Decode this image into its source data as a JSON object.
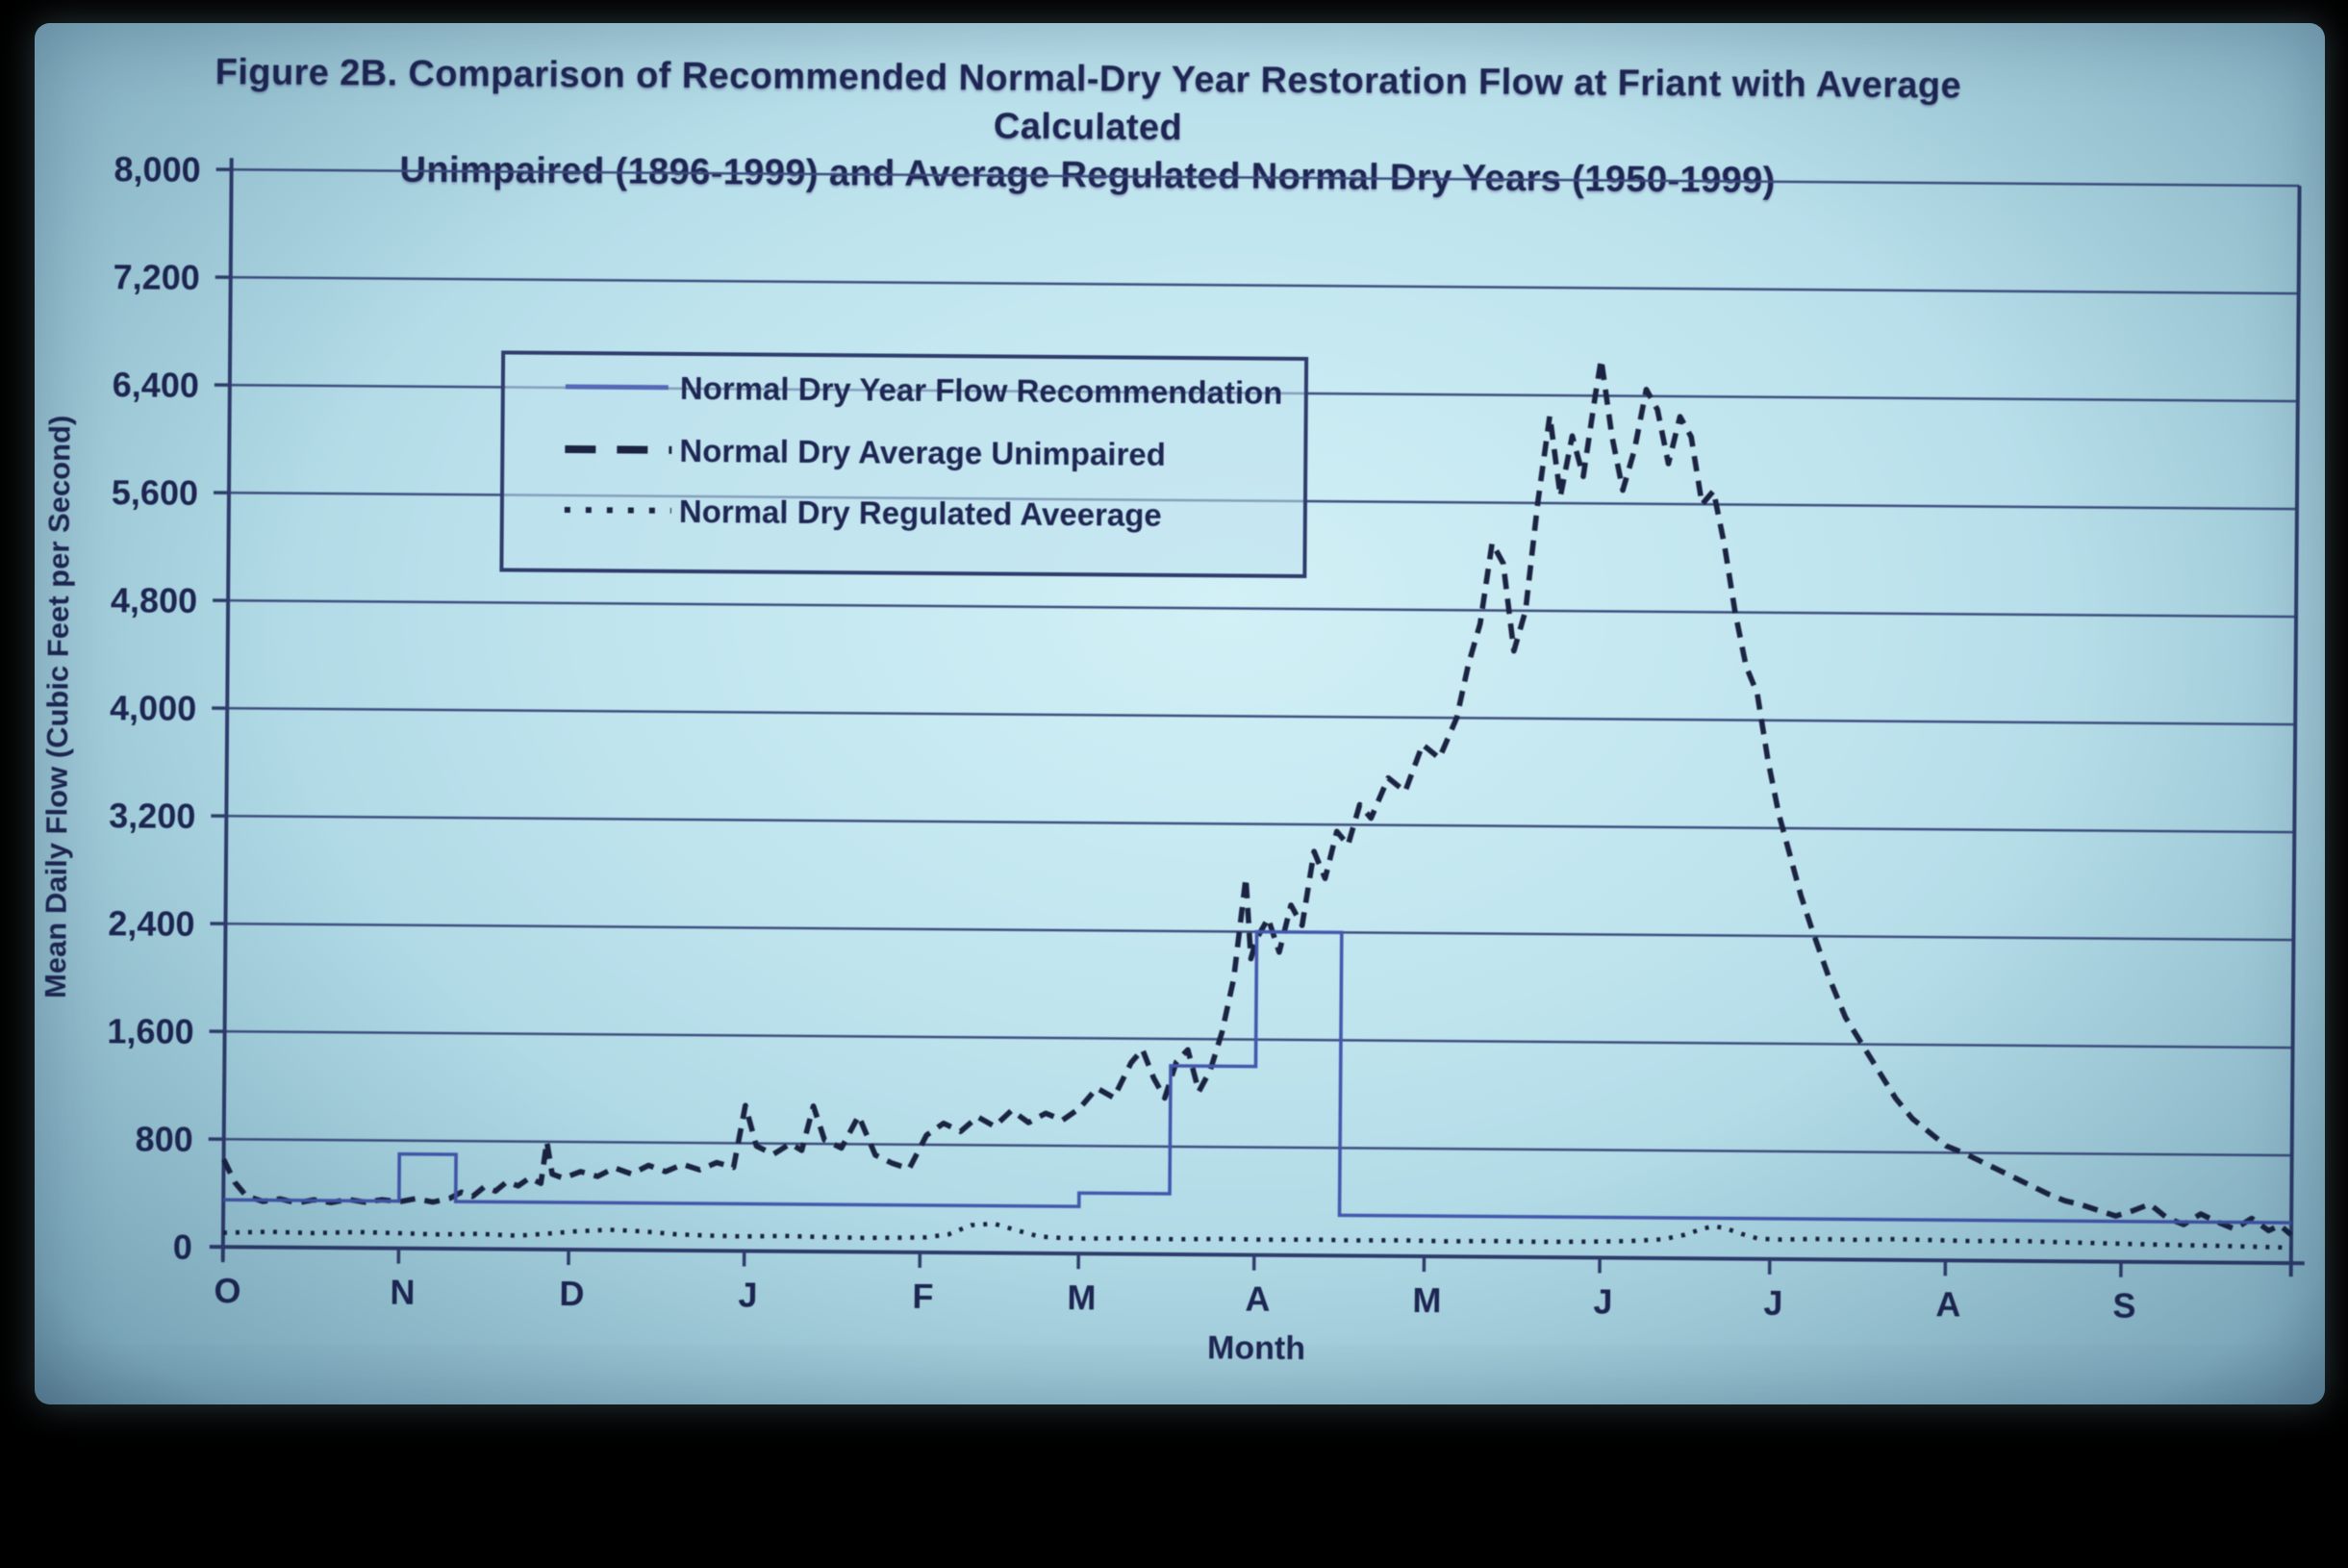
{
  "title": {
    "line1": "Figure 2B.  Comparison of Recommended  Normal-Dry Year Restoration Flow at Friant with Average Calculated",
    "line2": "Unimpaired (1896-1999) and Average Regulated Normal Dry Years (1950-1999)"
  },
  "colors": {
    "screen_background": "#aed6e4",
    "ink": "#1d2654",
    "gridline": "#3c4c80",
    "recommendation_line": "#4257b0",
    "unimpaired_line": "#1a2342",
    "regulated_line": "#1a2342"
  },
  "chart_data": {
    "type": "line",
    "title": "Figure 2B. Comparison of Recommended Normal-Dry Year Restoration Flow at Friant with Average Calculated Unimpaired (1896-1999) and Average Regulated Normal Dry Years (1950-1999)",
    "xlabel": "Month",
    "ylabel": "Mean Daily Flow (Cubic Feet per Second)",
    "ylim": [
      0,
      8000
    ],
    "ytick_step": 800,
    "grid": "horizontal",
    "legend_position": "upper-left-inside",
    "x_unit": "day of water year (Oct 1 = 0, Sep 30 = 365)",
    "ytick_labels": [
      "0",
      "800",
      "1,600",
      "2,400",
      "3,200",
      "4,000",
      "4,800",
      "5,600",
      "6,400",
      "7,200",
      "8,000"
    ],
    "xtick_labels": [
      "O",
      "N",
      "D",
      "J",
      "F",
      "M",
      "A",
      "M",
      "J",
      "J",
      "A",
      "S"
    ],
    "xtick_days": [
      0,
      31,
      61,
      92,
      123,
      151,
      182,
      212,
      243,
      273,
      304,
      335
    ],
    "legend": [
      {
        "label": "Normal Dry Year Flow Recommendation",
        "style": "solid"
      },
      {
        "label": "Normal Dry Average Unimpaired",
        "style": "dashed"
      },
      {
        "label": "Normal Dry Regulated Aveerage",
        "style": "dotted"
      }
    ],
    "series": [
      {
        "name": "Normal Dry Year Flow Recommendation",
        "style": "solid",
        "color": "#4257b0",
        "points": [
          [
            0,
            350
          ],
          [
            31,
            350
          ],
          [
            31,
            700
          ],
          [
            41,
            700
          ],
          [
            41,
            350
          ],
          [
            151,
            350
          ],
          [
            151,
            450
          ],
          [
            167,
            450
          ],
          [
            167,
            1400
          ],
          [
            182,
            1400
          ],
          [
            182,
            2400
          ],
          [
            197,
            2400
          ],
          [
            197,
            300
          ],
          [
            365,
            300
          ]
        ]
      },
      {
        "name": "Normal Dry Average Unimpaired",
        "style": "dashed",
        "color": "#1a2342",
        "points": [
          [
            0,
            650
          ],
          [
            2,
            480
          ],
          [
            4,
            380
          ],
          [
            7,
            340
          ],
          [
            10,
            360
          ],
          [
            13,
            330
          ],
          [
            16,
            355
          ],
          [
            19,
            335
          ],
          [
            22,
            360
          ],
          [
            25,
            340
          ],
          [
            28,
            360
          ],
          [
            31,
            345
          ],
          [
            34,
            370
          ],
          [
            37,
            345
          ],
          [
            40,
            375
          ],
          [
            42,
            420
          ],
          [
            44,
            390
          ],
          [
            46,
            460
          ],
          [
            48,
            430
          ],
          [
            50,
            500
          ],
          [
            52,
            470
          ],
          [
            54,
            530
          ],
          [
            56,
            490
          ],
          [
            57,
            800
          ],
          [
            58,
            560
          ],
          [
            60,
            530
          ],
          [
            63,
            580
          ],
          [
            66,
            545
          ],
          [
            69,
            610
          ],
          [
            72,
            565
          ],
          [
            75,
            630
          ],
          [
            78,
            585
          ],
          [
            81,
            640
          ],
          [
            84,
            600
          ],
          [
            87,
            655
          ],
          [
            90,
            620
          ],
          [
            92,
            1080
          ],
          [
            94,
            780
          ],
          [
            97,
            720
          ],
          [
            100,
            800
          ],
          [
            102,
            750
          ],
          [
            104,
            1080
          ],
          [
            106,
            830
          ],
          [
            109,
            770
          ],
          [
            112,
            1010
          ],
          [
            115,
            720
          ],
          [
            118,
            660
          ],
          [
            121,
            620
          ],
          [
            124,
            870
          ],
          [
            127,
            960
          ],
          [
            130,
            900
          ],
          [
            133,
            1010
          ],
          [
            136,
            940
          ],
          [
            139,
            1060
          ],
          [
            142,
            970
          ],
          [
            145,
            1040
          ],
          [
            148,
            990
          ],
          [
            151,
            1080
          ],
          [
            154,
            1230
          ],
          [
            157,
            1160
          ],
          [
            160,
            1420
          ],
          [
            162,
            1520
          ],
          [
            164,
            1310
          ],
          [
            166,
            1160
          ],
          [
            168,
            1430
          ],
          [
            170,
            1520
          ],
          [
            172,
            1210
          ],
          [
            174,
            1370
          ],
          [
            176,
            1650
          ],
          [
            178,
            2050
          ],
          [
            180,
            2800
          ],
          [
            181,
            2200
          ],
          [
            182,
            2350
          ],
          [
            184,
            2500
          ],
          [
            186,
            2250
          ],
          [
            188,
            2600
          ],
          [
            190,
            2450
          ],
          [
            192,
            3000
          ],
          [
            194,
            2800
          ],
          [
            196,
            3150
          ],
          [
            198,
            3050
          ],
          [
            200,
            3350
          ],
          [
            202,
            3250
          ],
          [
            205,
            3550
          ],
          [
            208,
            3450
          ],
          [
            211,
            3800
          ],
          [
            214,
            3700
          ],
          [
            217,
            4000
          ],
          [
            219,
            4400
          ],
          [
            221,
            4700
          ],
          [
            223,
            5300
          ],
          [
            225,
            5150
          ],
          [
            227,
            4500
          ],
          [
            229,
            4800
          ],
          [
            231,
            5600
          ],
          [
            233,
            6250
          ],
          [
            235,
            5650
          ],
          [
            237,
            6100
          ],
          [
            239,
            5800
          ],
          [
            241,
            6400
          ],
          [
            242,
            6670
          ],
          [
            244,
            6100
          ],
          [
            246,
            5700
          ],
          [
            248,
            6000
          ],
          [
            250,
            6450
          ],
          [
            252,
            6300
          ],
          [
            254,
            5900
          ],
          [
            256,
            6250
          ],
          [
            258,
            6100
          ],
          [
            260,
            5600
          ],
          [
            262,
            5700
          ],
          [
            264,
            5300
          ],
          [
            266,
            4800
          ],
          [
            268,
            4400
          ],
          [
            270,
            4200
          ],
          [
            272,
            3700
          ],
          [
            274,
            3300
          ],
          [
            276,
            3000
          ],
          [
            278,
            2700
          ],
          [
            280,
            2450
          ],
          [
            283,
            2100
          ],
          [
            286,
            1800
          ],
          [
            289,
            1600
          ],
          [
            292,
            1400
          ],
          [
            295,
            1200
          ],
          [
            298,
            1050
          ],
          [
            301,
            950
          ],
          [
            304,
            850
          ],
          [
            307,
            800
          ],
          [
            310,
            740
          ],
          [
            313,
            680
          ],
          [
            316,
            620
          ],
          [
            319,
            560
          ],
          [
            322,
            500
          ],
          [
            325,
            450
          ],
          [
            328,
            420
          ],
          [
            331,
            380
          ],
          [
            334,
            340
          ],
          [
            337,
            380
          ],
          [
            340,
            430
          ],
          [
            343,
            330
          ],
          [
            346,
            280
          ],
          [
            349,
            360
          ],
          [
            352,
            300
          ],
          [
            355,
            250
          ],
          [
            358,
            330
          ],
          [
            361,
            240
          ],
          [
            363,
            280
          ],
          [
            365,
            210
          ]
        ]
      },
      {
        "name": "Normal Dry Regulated Aveerage",
        "style": "dotted",
        "color": "#1a2342",
        "points": [
          [
            0,
            105
          ],
          [
            8,
            115
          ],
          [
            16,
            108
          ],
          [
            24,
            118
          ],
          [
            31,
            112
          ],
          [
            38,
            105
          ],
          [
            45,
            112
          ],
          [
            52,
            100
          ],
          [
            58,
            120
          ],
          [
            62,
            135
          ],
          [
            68,
            150
          ],
          [
            74,
            140
          ],
          [
            80,
            120
          ],
          [
            86,
            112
          ],
          [
            92,
            108
          ],
          [
            99,
            114
          ],
          [
            106,
            108
          ],
          [
            113,
            104
          ],
          [
            120,
            108
          ],
          [
            124,
            112
          ],
          [
            128,
            135
          ],
          [
            132,
            205
          ],
          [
            136,
            218
          ],
          [
            140,
            170
          ],
          [
            144,
            125
          ],
          [
            148,
            115
          ],
          [
            152,
            112
          ],
          [
            160,
            118
          ],
          [
            168,
            112
          ],
          [
            176,
            118
          ],
          [
            184,
            114
          ],
          [
            192,
            118
          ],
          [
            200,
            114
          ],
          [
            208,
            118
          ],
          [
            216,
            113
          ],
          [
            224,
            118
          ],
          [
            232,
            114
          ],
          [
            240,
            118
          ],
          [
            248,
            125
          ],
          [
            254,
            140
          ],
          [
            258,
            175
          ],
          [
            261,
            220
          ],
          [
            263,
            240
          ],
          [
            265,
            228
          ],
          [
            268,
            185
          ],
          [
            271,
            150
          ],
          [
            275,
            145
          ],
          [
            281,
            152
          ],
          [
            288,
            148
          ],
          [
            295,
            155
          ],
          [
            302,
            150
          ],
          [
            309,
            145
          ],
          [
            316,
            150
          ],
          [
            323,
            143
          ],
          [
            330,
            138
          ],
          [
            337,
            133
          ],
          [
            344,
            128
          ],
          [
            351,
            125
          ],
          [
            358,
            120
          ],
          [
            365,
            115
          ]
        ]
      }
    ]
  }
}
